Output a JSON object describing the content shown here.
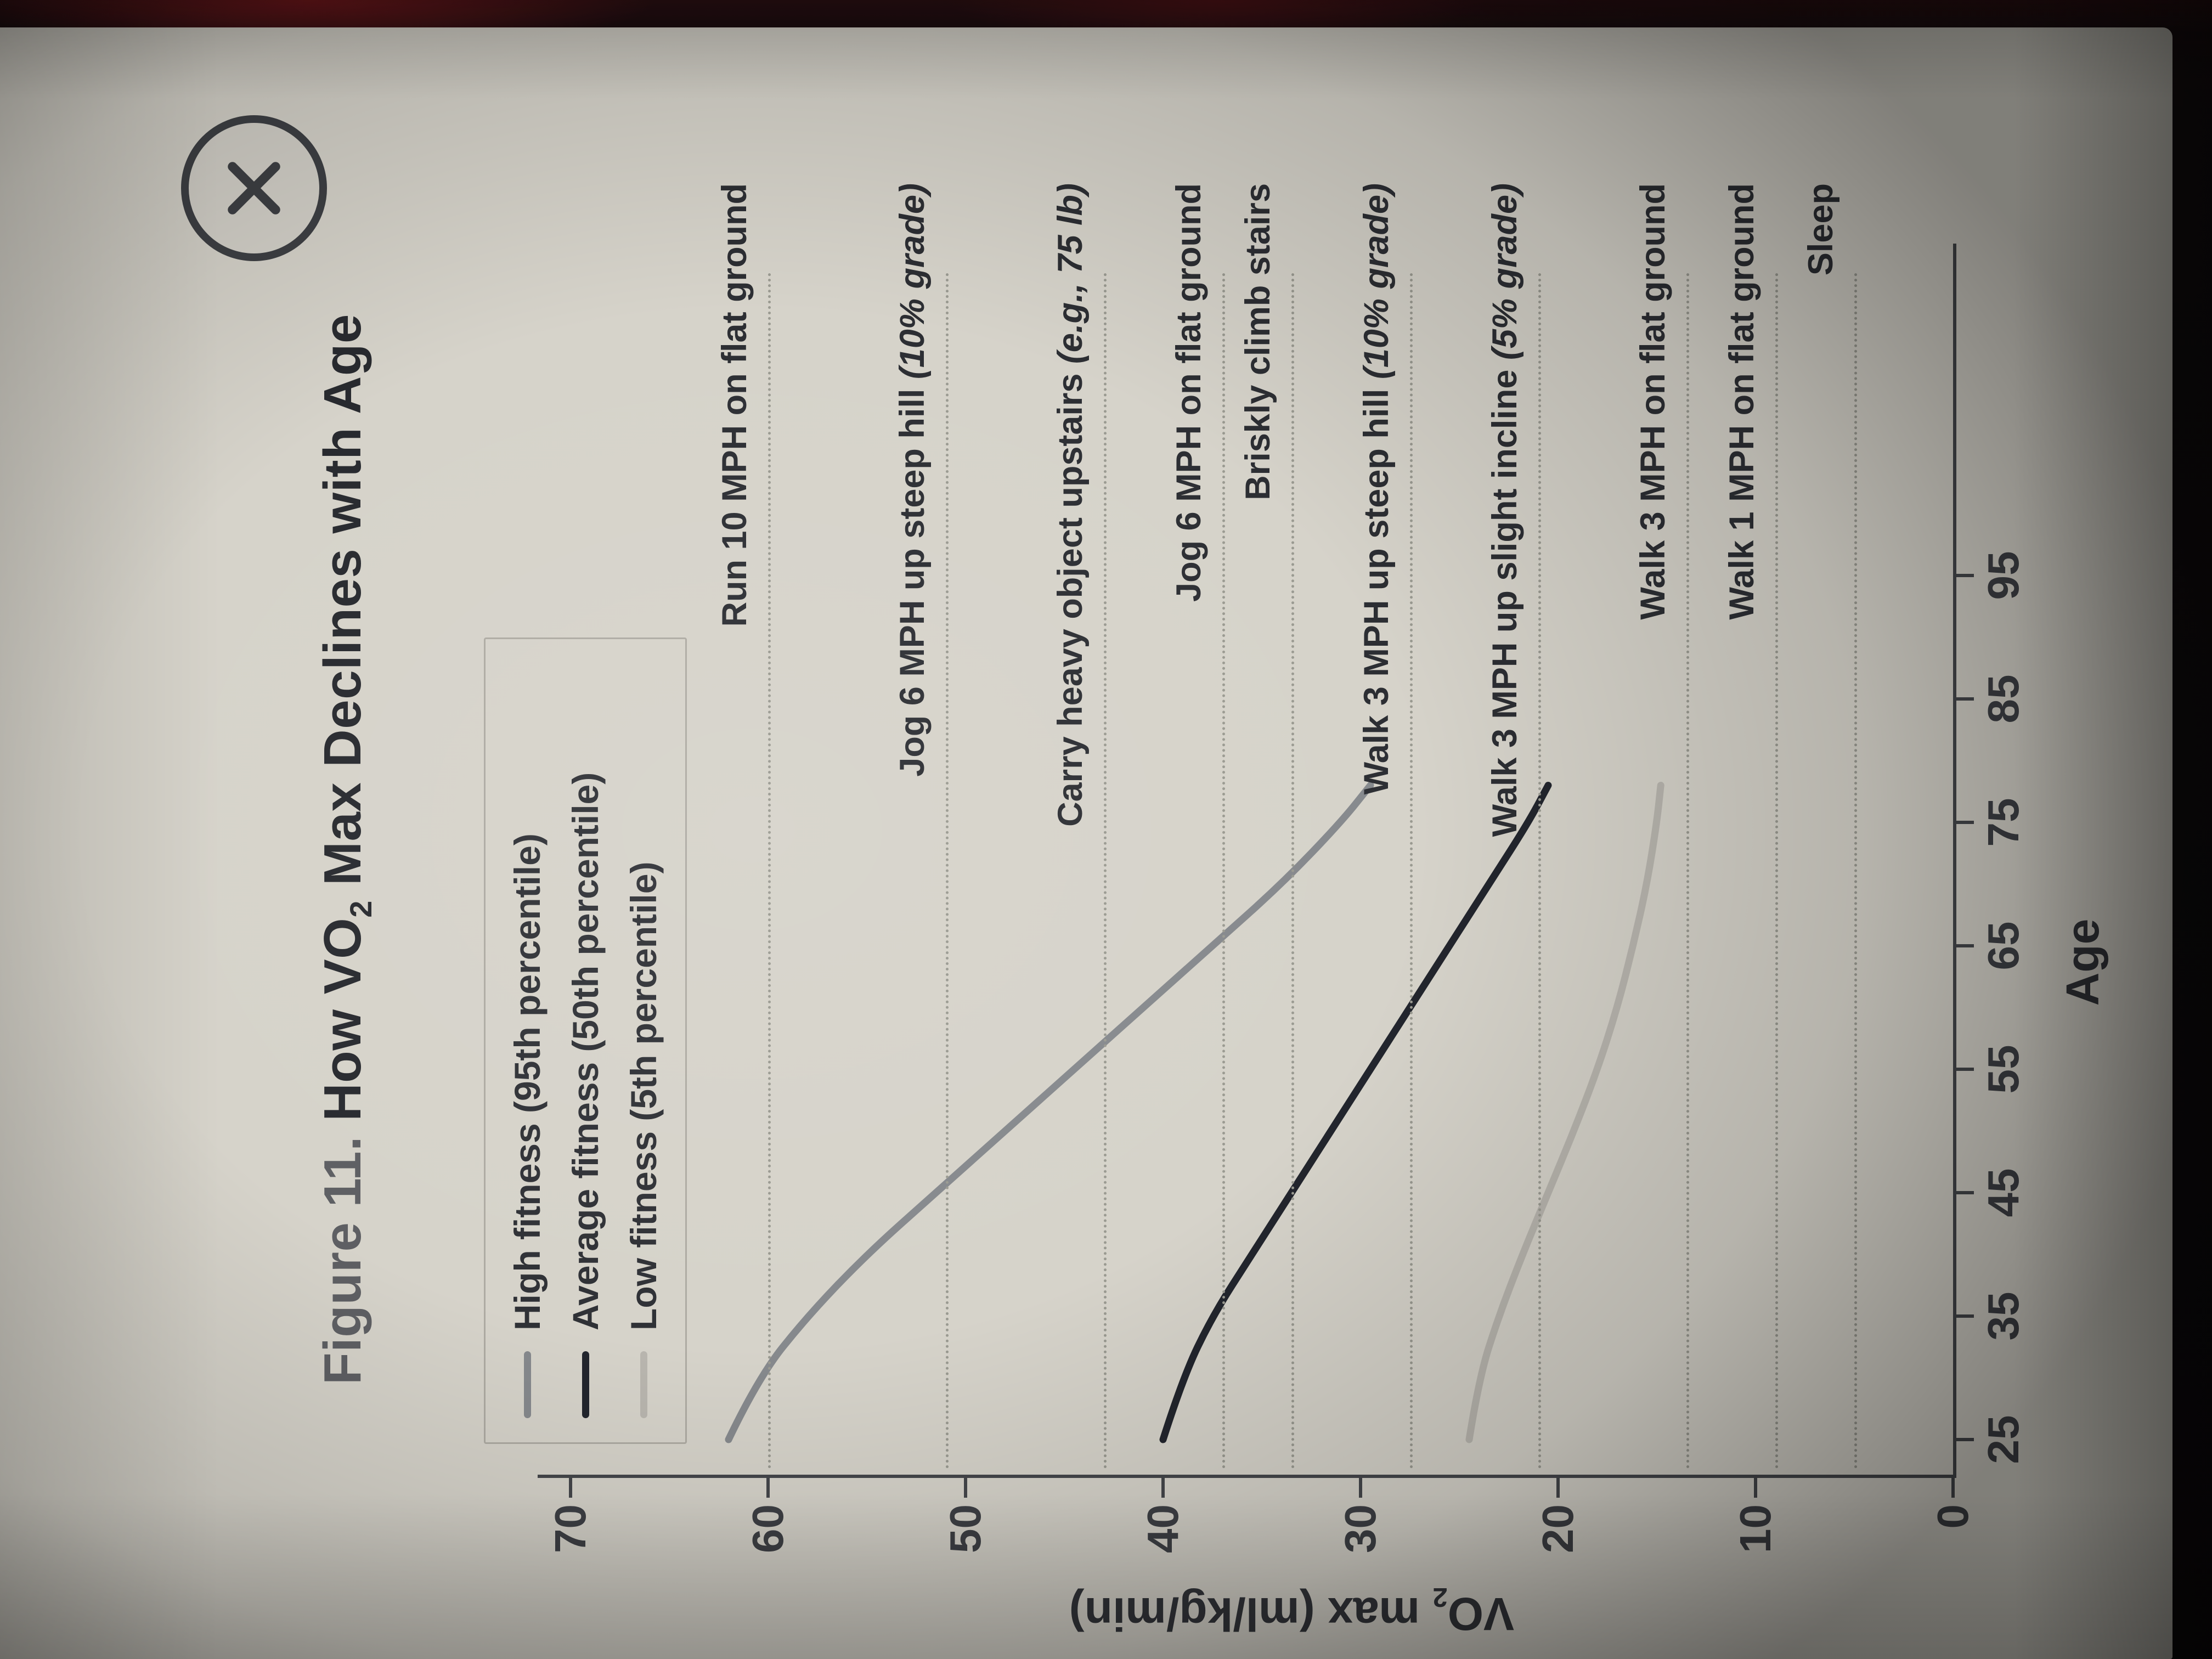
{
  "window": {
    "close_button": "close"
  },
  "figure": {
    "title_prefix": "Figure 11.",
    "title_main_pre": " How VO",
    "title_sub": "2",
    "title_main_post": " Max Declines with Age",
    "ylabel_pre": "VO",
    "ylabel_sub": "2",
    "ylabel_post": " max (ml/kg/min)",
    "xlabel": "Age"
  },
  "legend": {
    "position": "inside-top-left",
    "items": [
      {
        "label": "High fitness (95th percentile)",
        "color": "#86898d"
      },
      {
        "label": "Average fitness (50th percentile)",
        "color": "#22252d"
      },
      {
        "label": "Low fitness (5th percentile)",
        "color": "#b9b6af"
      }
    ]
  },
  "chart_data": {
    "type": "line",
    "title": "Figure 11. How VO₂ Max Declines with Age",
    "xlabel": "Age",
    "ylabel": "VO₂ max (ml/kg/min)",
    "xlim": [
      25,
      95
    ],
    "ylim": [
      0,
      70
    ],
    "x_ticks": [
      25,
      35,
      45,
      55,
      65,
      75,
      85,
      95
    ],
    "y_ticks": [
      0,
      10,
      20,
      30,
      40,
      50,
      60,
      70
    ],
    "grid": "dotted-horizontal-reference-lines-only",
    "series": [
      {
        "name": "High fitness (95th percentile)",
        "color": "#86898d",
        "points": [
          [
            25,
            62
          ],
          [
            30,
            60.5
          ],
          [
            35,
            58
          ],
          [
            40,
            55
          ],
          [
            45,
            51.5
          ],
          [
            50,
            48
          ],
          [
            55,
            44.5
          ],
          [
            60,
            41
          ],
          [
            65,
            37.5
          ],
          [
            70,
            34
          ],
          [
            75,
            31
          ],
          [
            78,
            29.5
          ]
        ]
      },
      {
        "name": "Average fitness (50th percentile)",
        "color": "#22252d",
        "points": [
          [
            25,
            40
          ],
          [
            30,
            39
          ],
          [
            35,
            37.5
          ],
          [
            40,
            35.5
          ],
          [
            45,
            33.5
          ],
          [
            50,
            31.5
          ],
          [
            55,
            29.5
          ],
          [
            60,
            27.5
          ],
          [
            65,
            25.5
          ],
          [
            70,
            23.5
          ],
          [
            75,
            21.5
          ],
          [
            78,
            20.5
          ]
        ]
      },
      {
        "name": "Low fitness (5th percentile)",
        "color": "#b9b6af",
        "points": [
          [
            25,
            24.5
          ],
          [
            30,
            24
          ],
          [
            35,
            23
          ],
          [
            40,
            21.8
          ],
          [
            45,
            20.5
          ],
          [
            50,
            19.2
          ],
          [
            55,
            18
          ],
          [
            60,
            17
          ],
          [
            65,
            16.2
          ],
          [
            70,
            15.5
          ],
          [
            75,
            15
          ],
          [
            78,
            14.8
          ]
        ]
      }
    ],
    "reference_lines": [
      {
        "label": "Run 10 MPH on flat ground",
        "italic": "",
        "value": 60
      },
      {
        "label": "Jog 6 MPH up steep hill",
        "italic": "(10% grade)",
        "value": 51
      },
      {
        "label": "Carry heavy object upstairs",
        "italic": "(e.g., 75 lb)",
        "value": 43
      },
      {
        "label": "Jog 6 MPH on flat ground",
        "italic": "",
        "value": 37
      },
      {
        "label": "Briskly climb stairs",
        "italic": "",
        "value": 33.5
      },
      {
        "label": "Walk 3 MPH up steep hill",
        "italic": "(10% grade)",
        "value": 27.5
      },
      {
        "label": "Walk 3 MPH up slight incline",
        "italic": "(5% grade)",
        "value": 21
      },
      {
        "label": "Walk 3 MPH on flat ground",
        "italic": "",
        "value": 13.5
      },
      {
        "label": "Walk 1 MPH on flat ground",
        "italic": "",
        "value": 9
      },
      {
        "label": "Sleep",
        "italic": "",
        "value": 5
      }
    ]
  }
}
